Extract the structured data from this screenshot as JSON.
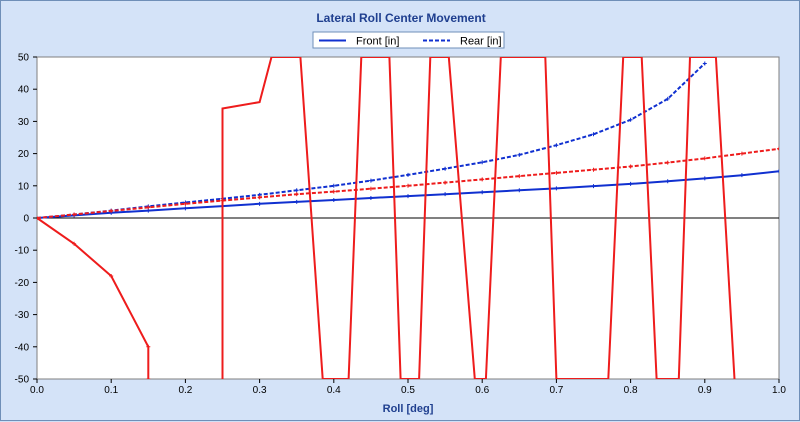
{
  "chart_data": {
    "type": "line",
    "title": "Lateral Roll Center Movement",
    "xlabel": "Roll [deg]",
    "ylabel": "",
    "xlim": [
      0,
      1.0
    ],
    "ylim": [
      -50,
      50
    ],
    "x_ticks": [
      0.0,
      0.1,
      0.2,
      0.3,
      0.4,
      0.5,
      0.6,
      0.7,
      0.8,
      0.9,
      1.0
    ],
    "y_ticks": [
      50,
      40,
      30,
      20,
      10,
      0,
      -10,
      -20,
      -30,
      -40,
      -50
    ],
    "x_tick_labels": [
      "0.0",
      "0.1",
      "0.2",
      "0.3",
      "0.4",
      "0.5",
      "0.6",
      "0.7",
      "0.8",
      "0.9",
      "1.0"
    ],
    "y_tick_labels": [
      "50",
      "40",
      "30",
      "20",
      "10",
      "0",
      "-10",
      "-20",
      "-30",
      "-40",
      "-50"
    ],
    "legend": {
      "placement": "top-center",
      "entries": [
        "Front [in]",
        "Rear [in]"
      ]
    },
    "colors": {
      "front": "#1030d0",
      "rear": "#1030d0",
      "red": "#ee1c1c",
      "zero_line": "#000000",
      "plot_bg": "#ffffff"
    },
    "series": [
      {
        "name": "Front [in]",
        "style": "solid",
        "color": "#1030d0",
        "x": [
          0,
          0.05,
          0.1,
          0.15,
          0.2,
          0.25,
          0.3,
          0.35,
          0.4,
          0.45,
          0.5,
          0.55,
          0.6,
          0.65,
          0.7,
          0.75,
          0.8,
          0.85,
          0.9,
          0.95,
          1.0
        ],
        "y": [
          0,
          0.8,
          1.6,
          2.3,
          3.0,
          3.7,
          4.4,
          5.0,
          5.6,
          6.2,
          6.8,
          7.4,
          8.0,
          8.6,
          9.2,
          9.9,
          10.6,
          11.4,
          12.3,
          13.3,
          14.5
        ]
      },
      {
        "name": "Rear [in]",
        "style": "dashed",
        "color": "#1030d0",
        "x": [
          0,
          0.05,
          0.1,
          0.15,
          0.2,
          0.25,
          0.3,
          0.35,
          0.4,
          0.45,
          0.5,
          0.55,
          0.6,
          0.65,
          0.7,
          0.75,
          0.8,
          0.85,
          0.9
        ],
        "y": [
          0,
          1.1,
          2.3,
          3.6,
          4.8,
          6.0,
          7.2,
          8.6,
          10.0,
          11.6,
          13.4,
          15.3,
          17.3,
          19.6,
          22.6,
          26.0,
          30.5,
          37.0,
          48.0
        ]
      },
      {
        "name": "",
        "style": "solid",
        "color": "#ee1c1c",
        "x": [
          0,
          0.05,
          0.1,
          0.15,
          0.15
        ],
        "y": [
          0,
          -8,
          -18,
          -40,
          -50
        ]
      },
      {
        "name": "",
        "style": "solid",
        "color": "#ee1c1c",
        "x": [
          0.25,
          0.25,
          0.3,
          0.316,
          0.355,
          0.385,
          0.42,
          0.437,
          0.475,
          0.49,
          0.515,
          0.53,
          0.555,
          0.59,
          0.605,
          0.625,
          0.685,
          0.7,
          0.77,
          0.79,
          0.815,
          0.835,
          0.865,
          0.88,
          0.915,
          0.94
        ],
        "y": [
          -50,
          34,
          36,
          50,
          50,
          -50,
          -50,
          50,
          50,
          -50,
          -50,
          50,
          50,
          -50,
          -50,
          50,
          50,
          -50,
          -50,
          50,
          50,
          -50,
          -50,
          50,
          50,
          -50
        ]
      },
      {
        "name": "",
        "style": "dashed",
        "color": "#ee1c1c",
        "x": [
          0,
          0.05,
          0.1,
          0.15,
          0.2,
          0.25,
          0.3,
          0.35,
          0.4,
          0.45,
          0.5,
          0.55,
          0.6,
          0.65,
          0.7,
          0.75,
          0.8,
          0.85,
          0.9,
          0.95,
          1.0
        ],
        "y": [
          0,
          1.1,
          2.2,
          3.3,
          4.4,
          5.4,
          6.4,
          7.4,
          8.2,
          9.1,
          10.0,
          11.0,
          12.0,
          13.0,
          14.0,
          15.0,
          16.0,
          17.2,
          18.5,
          20.0,
          21.5
        ]
      }
    ]
  }
}
